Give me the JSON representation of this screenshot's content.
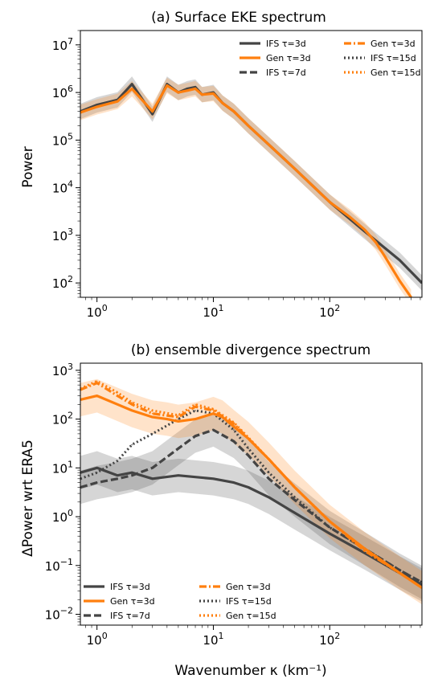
{
  "figure": {
    "xlabel": "Wavenumber κ (km⁻¹)"
  },
  "chart_data": [
    {
      "type": "line",
      "title": "(a) Surface EKE spectrum",
      "ylabel": "Power",
      "xscale": "log",
      "yscale": "log",
      "xlim": [
        0.72,
        620
      ],
      "ylim": [
        50,
        20000000
      ],
      "x_ticks": [
        {
          "value": 1,
          "base": "10",
          "exp": "0"
        },
        {
          "value": 10,
          "base": "10",
          "exp": "1"
        },
        {
          "value": 100,
          "base": "10",
          "exp": "2"
        }
      ],
      "y_ticks": [
        {
          "value": 100,
          "base": "10",
          "exp": "2"
        },
        {
          "value": 1000,
          "base": "10",
          "exp": "3"
        },
        {
          "value": 10000,
          "base": "10",
          "exp": "4"
        },
        {
          "value": 100000,
          "base": "10",
          "exp": "5"
        },
        {
          "value": 1000000,
          "base": "10",
          "exp": "6"
        },
        {
          "value": 10000000,
          "base": "10",
          "exp": "7"
        }
      ],
      "legend_position": "top-right",
      "legend": [
        [
          "IFS τ=3d",
          "Gen τ=3d"
        ],
        [
          "Gen τ=3d",
          "IFS τ=15d"
        ],
        [
          "IFS τ=7d",
          "Gen τ=15d"
        ]
      ],
      "series": [
        {
          "name": "IFS τ=3d",
          "color": "#444444",
          "dash": "solid",
          "band": true,
          "x": [
            0.72,
            1,
            1.5,
            2,
            3,
            4,
            5,
            6,
            7,
            8,
            10,
            12,
            15,
            20,
            30,
            50,
            100,
            200,
            400,
            620
          ],
          "y": [
            400000,
            550000,
            700000,
            1500000,
            350000,
            1500000,
            1000000,
            1200000,
            1300000,
            900000,
            1000000,
            600000,
            400000,
            200000,
            80000,
            25000,
            5000,
            1200,
            300,
            100
          ]
        },
        {
          "name": "Gen τ=3d",
          "color": "#ff7f0e",
          "dash": "solid",
          "band": true,
          "x": [
            0.72,
            1,
            1.5,
            2,
            3,
            4,
            5,
            6,
            7,
            8,
            10,
            12,
            15,
            20,
            30,
            50,
            100,
            150,
            200,
            250,
            300,
            400,
            500
          ],
          "y": [
            380000,
            500000,
            650000,
            1200000,
            400000,
            1400000,
            1000000,
            1100000,
            1200000,
            900000,
            950000,
            600000,
            400000,
            200000,
            80000,
            25000,
            5000,
            2400,
            1300,
            700,
            350,
            110,
            50
          ]
        }
      ]
    },
    {
      "type": "line",
      "title": "(b) ensemble divergence spectrum",
      "ylabel": "ΔPower wrt ERA5",
      "xscale": "log",
      "yscale": "log",
      "xlim": [
        0.72,
        620
      ],
      "ylim": [
        0.006,
        1400
      ],
      "x_ticks": [
        {
          "value": 1,
          "base": "10",
          "exp": "0"
        },
        {
          "value": 10,
          "base": "10",
          "exp": "1"
        },
        {
          "value": 100,
          "base": "10",
          "exp": "2"
        }
      ],
      "y_ticks": [
        {
          "value": 0.01,
          "base": "10",
          "exp": "−2"
        },
        {
          "value": 0.1,
          "base": "10",
          "exp": "−1"
        },
        {
          "value": 1,
          "base": "10",
          "exp": "0"
        },
        {
          "value": 10,
          "base": "10",
          "exp": "1"
        },
        {
          "value": 100,
          "base": "10",
          "exp": "2"
        },
        {
          "value": 1000,
          "base": "10",
          "exp": "3"
        }
      ],
      "legend_position": "bottom-left",
      "legend": [
        [
          "IFS τ=3d",
          "Gen τ=3d"
        ],
        [
          "Gen τ=3d",
          "IFS τ=15d"
        ],
        [
          "IFS τ=7d",
          "Gen τ=15d"
        ]
      ],
      "series": [
        {
          "name": "IFS τ=3d",
          "color": "#444444",
          "dash": "solid",
          "band": true,
          "x": [
            0.72,
            1,
            1.5,
            2,
            3,
            5,
            10,
            15,
            20,
            30,
            50,
            100,
            200,
            400,
            620
          ],
          "y": [
            8,
            10,
            7,
            8,
            6,
            7,
            6,
            5,
            4,
            2.5,
            1.2,
            0.45,
            0.18,
            0.07,
            0.04
          ]
        },
        {
          "name": "IFS τ=7d",
          "color": "#444444",
          "dash": "dashed",
          "band": true,
          "x": [
            0.72,
            1,
            1.5,
            2,
            3,
            5,
            7,
            10,
            15,
            20,
            30,
            50,
            100,
            200,
            400,
            620
          ],
          "y": [
            4,
            5,
            6,
            7,
            10,
            25,
            45,
            60,
            35,
            18,
            6,
            2.2,
            0.6,
            0.22,
            0.08,
            0.045
          ]
        },
        {
          "name": "IFS τ=15d",
          "color": "#444444",
          "dash": "dotted",
          "band": false,
          "x": [
            0.72,
            1,
            1.5,
            2,
            3,
            5,
            7,
            10,
            15,
            20,
            30,
            50,
            100,
            200,
            400,
            620
          ],
          "y": [
            6,
            8,
            14,
            30,
            50,
            100,
            150,
            130,
            60,
            25,
            8,
            2.5,
            0.6,
            0.22,
            0.08,
            0.045
          ]
        },
        {
          "name": "Gen τ=3d",
          "color": "#ff7f0e",
          "dash": "solid",
          "band": true,
          "x": [
            0.72,
            1,
            1.5,
            2,
            3,
            4,
            5,
            7,
            10,
            12,
            15,
            20,
            30,
            50,
            100,
            200,
            400,
            620
          ],
          "y": [
            250,
            300,
            200,
            150,
            110,
            100,
            90,
            100,
            130,
            110,
            70,
            40,
            15,
            4,
            0.8,
            0.22,
            0.07,
            0.035
          ]
        },
        {
          "name": "Gen τ=3d",
          "color": "#ff7f0e",
          "dash": "dashdot",
          "band": false,
          "x": [
            0.72,
            1,
            1.5,
            2,
            3,
            5,
            7,
            10,
            15,
            20,
            30,
            50,
            100,
            200,
            400,
            620
          ],
          "y": [
            400,
            550,
            300,
            200,
            130,
            110,
            180,
            150,
            80,
            40,
            15,
            4,
            0.8,
            0.2,
            0.07,
            0.035
          ]
        },
        {
          "name": "Gen τ=15d",
          "color": "#ff7f0e",
          "dash": "dotted",
          "band": false,
          "x": [
            0.72,
            1,
            1.5,
            2,
            3,
            5,
            7,
            10,
            15,
            20,
            30,
            50,
            100,
            200,
            400,
            620
          ],
          "y": [
            420,
            600,
            350,
            220,
            150,
            120,
            200,
            160,
            85,
            42,
            15,
            4,
            0.8,
            0.2,
            0.07,
            0.035
          ]
        }
      ]
    }
  ]
}
